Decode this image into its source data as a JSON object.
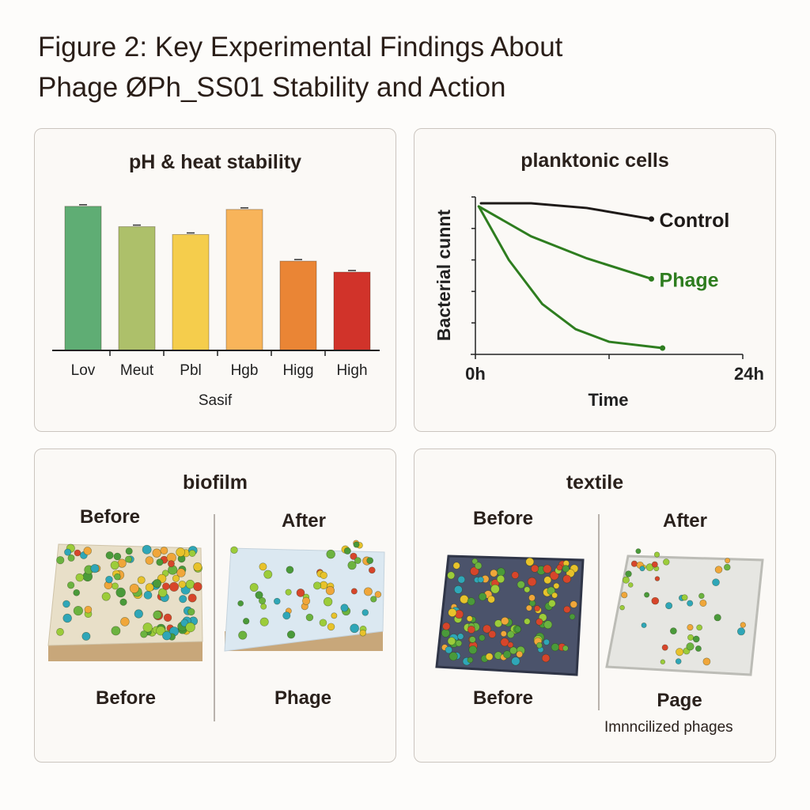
{
  "figure_title_line1": "Figure 2: Key Experimental Findings About",
  "figure_title_line2": "Phage ØPh_SS01 Stability and Action",
  "panels": {
    "ph_heat": {
      "title": "pH & heat stability"
    },
    "planktonic": {
      "title": "planktonic cells"
    },
    "biofilm": {
      "title": "biofilm",
      "before_top": "Before",
      "after_top": "After",
      "before_bottom": "Before",
      "after_bottom": "Phage"
    },
    "textile": {
      "title": "textile",
      "before_top": "Before",
      "after_top": "After",
      "before_bottom": "Before",
      "after_bottom": "Page",
      "caption": "Imnncilized phages"
    }
  },
  "chart_data": [
    {
      "type": "bar",
      "title": "pH & heat stability",
      "categories": [
        "Lov",
        "Meut",
        "Pbl",
        "Hgb",
        "Higg",
        "High"
      ],
      "values": [
        0.92,
        0.79,
        0.74,
        0.9,
        0.57,
        0.5
      ],
      "error_bars": true,
      "colors": [
        "#5fad74",
        "#adc06a",
        "#f5cd4c",
        "#f8b45a",
        "#ea8535",
        "#d1332a"
      ],
      "xlabel": "Sasif",
      "ylabel": "",
      "ylim": [
        0,
        1
      ],
      "grid": false
    },
    {
      "type": "line",
      "title": "planktonic cells",
      "xlabel": "Time",
      "ylabel": "Bacterial cunnt",
      "x_tick_labels": [
        "0h",
        "24h"
      ],
      "xlim": [
        0,
        24
      ],
      "ylim": [
        0,
        5
      ],
      "grid": false,
      "series": [
        {
          "name": "Control",
          "color": "#1e1a18",
          "x": [
            0.5,
            5,
            10,
            15.8
          ],
          "y": [
            4.8,
            4.8,
            4.65,
            4.3
          ]
        },
        {
          "name": "Phage",
          "color": "#2e7d1f",
          "x": [
            0.3,
            5,
            10,
            15.8
          ],
          "y": [
            4.7,
            3.75,
            3.05,
            2.4
          ]
        },
        {
          "color": "#2e7d1f",
          "x": [
            0.3,
            3,
            6,
            9,
            12,
            16.8
          ],
          "y": [
            4.7,
            3.0,
            1.6,
            0.8,
            0.4,
            0.2
          ]
        }
      ]
    }
  ],
  "colors": {
    "panel_border": "#cbc5bf",
    "text": "#2a211c",
    "phage_green": "#2e7d1f"
  }
}
